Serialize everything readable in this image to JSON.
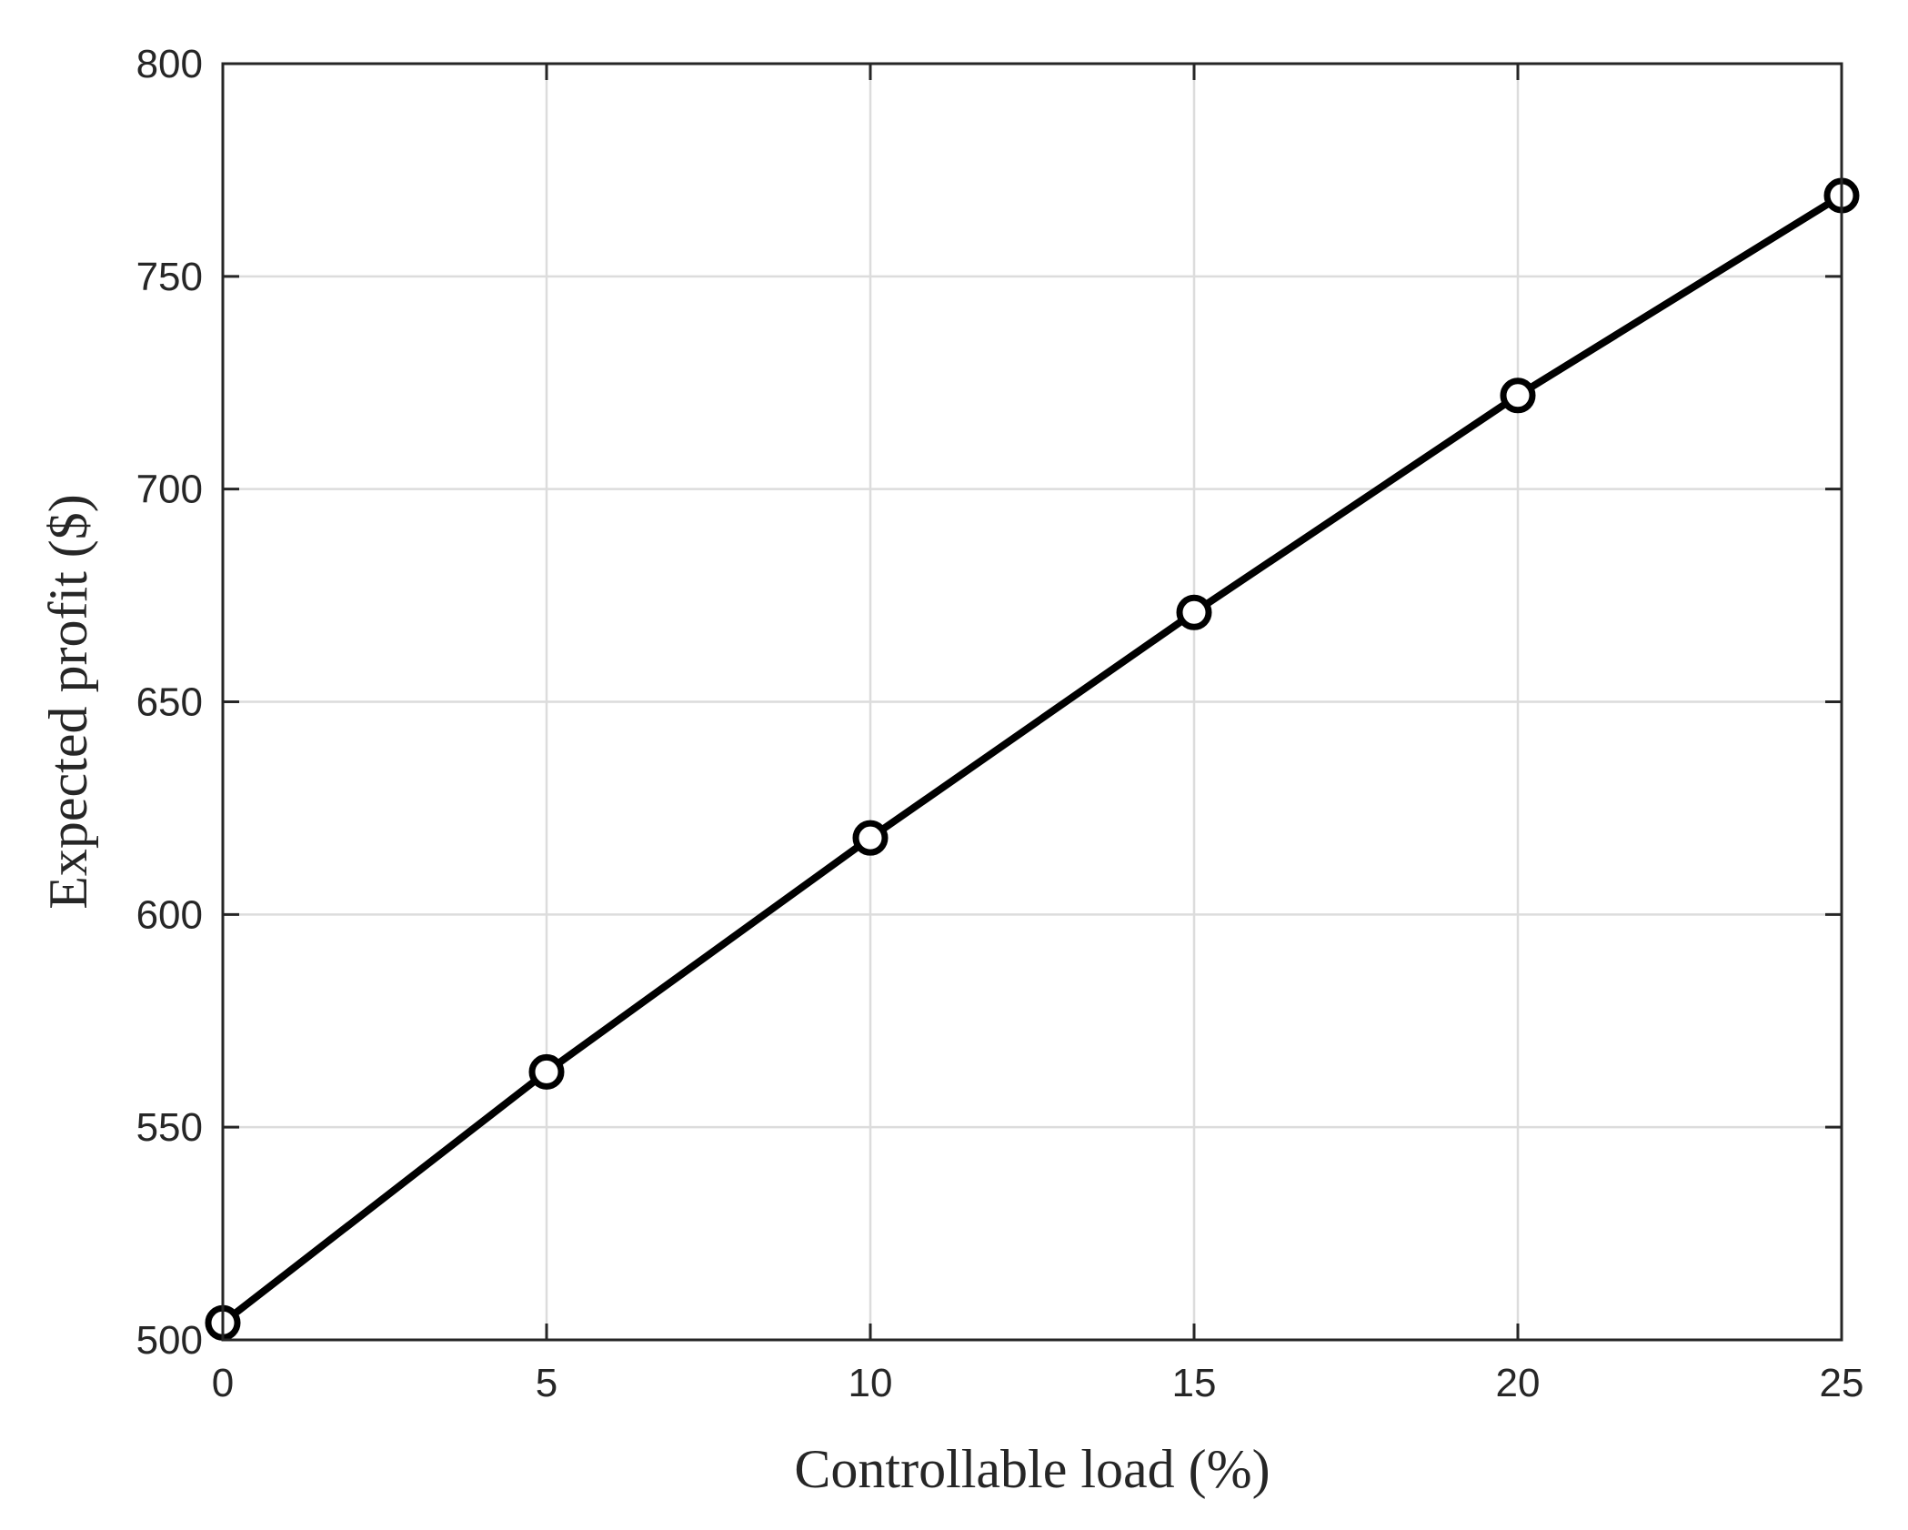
{
  "chart_data": {
    "type": "line",
    "title": "",
    "xlabel": "Controllable load (%)",
    "ylabel": "Expected profit ($)",
    "xlim": [
      0,
      25
    ],
    "ylim": [
      500,
      800
    ],
    "xticks": [
      0,
      5,
      10,
      15,
      20,
      25
    ],
    "yticks": [
      500,
      550,
      600,
      650,
      700,
      750,
      800
    ],
    "xtick_labels": [
      "0",
      "5",
      "10",
      "15",
      "20",
      "25"
    ],
    "ytick_labels": [
      "500",
      "550",
      "600",
      "650",
      "700",
      "750",
      "800"
    ],
    "grid": true,
    "legend": "none",
    "series": [
      {
        "color": "#000000",
        "marker": "circle",
        "x": [
          0,
          5,
          10,
          15,
          20,
          25
        ],
        "y": [
          504,
          563,
          618,
          671,
          722,
          769
        ]
      }
    ]
  }
}
